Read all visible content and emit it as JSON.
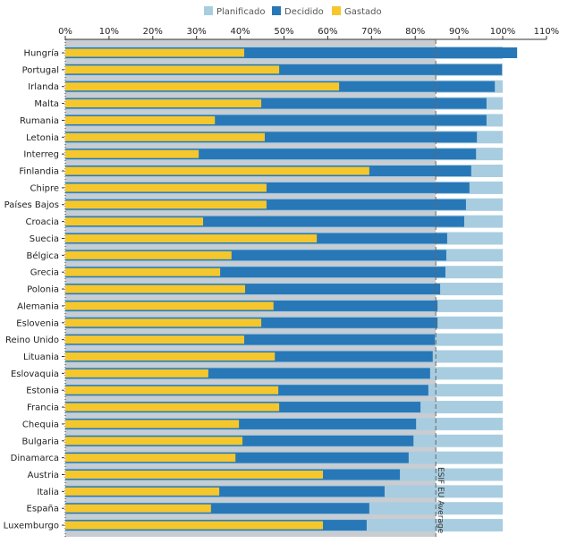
{
  "chart_data": {
    "type": "bar",
    "orientation": "horizontal",
    "title": "",
    "xlabel": "",
    "ylabel": "",
    "xlim": [
      0,
      110
    ],
    "x_ticks": [
      "0%",
      "10%",
      "20%",
      "30%",
      "40%",
      "50%",
      "60%",
      "70%",
      "80%",
      "90%",
      "100%",
      "110%"
    ],
    "legend_position": "top",
    "legend": [
      "Planificado",
      "Decidido",
      "Gastado"
    ],
    "colors": {
      "Planificado": "#a9cde0",
      "Decidido": "#2878b8",
      "Gastado": "#f5c72c",
      "average_band": "#c9cdd2"
    },
    "reference_line": {
      "label": "ESIF EU Average",
      "value": 84.7
    },
    "categories": [
      "Hungría",
      "Portugal",
      "Irlanda",
      "Malta",
      "Rumania",
      "Letonia",
      "Interreg",
      "Finlandia",
      "Chipre",
      "Países Bajos",
      "Croacia",
      "Suecia",
      "Bélgica",
      "Grecia",
      "Polonia",
      "Alemania",
      "Eslovenia",
      "Reino Unido",
      "Lituania",
      "Eslovaquia",
      "Estonia",
      "Francia",
      "Chequia",
      "Bulgaria",
      "Dinamarca",
      "Austria",
      "Italia",
      "España",
      "Luxemburgo"
    ],
    "series": [
      {
        "name": "Planificado",
        "values": [
          100,
          100,
          100,
          100,
          100,
          100,
          100,
          100,
          100,
          100,
          100,
          100,
          100,
          100,
          100,
          100,
          100,
          100,
          100,
          100,
          100,
          100,
          100,
          100,
          100,
          100,
          100,
          100,
          100
        ]
      },
      {
        "name": "Decidido",
        "values": [
          103.3,
          99.8,
          98.2,
          96.3,
          96.3,
          94.1,
          93.9,
          92.8,
          92.4,
          91.6,
          91.2,
          87.3,
          87.1,
          86.9,
          85.7,
          85.1,
          85.1,
          84.5,
          84.0,
          83.4,
          83.0,
          81.2,
          80.2,
          79.6,
          78.5,
          76.5,
          73.0,
          69.5,
          68.9
        ]
      },
      {
        "name": "Gastado",
        "values": [
          40.9,
          48.9,
          62.6,
          44.8,
          34.2,
          45.6,
          30.5,
          69.5,
          46.0,
          46.0,
          31.5,
          57.5,
          38.0,
          35.4,
          41.1,
          47.6,
          44.8,
          40.9,
          47.9,
          32.7,
          48.7,
          48.9,
          39.7,
          40.5,
          38.9,
          58.9,
          35.2,
          33.3,
          58.9
        ]
      }
    ]
  }
}
